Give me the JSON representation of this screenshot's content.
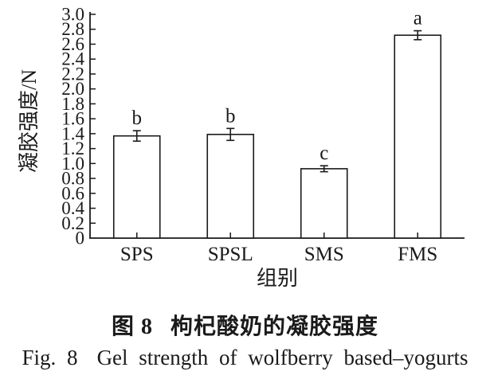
{
  "figure": {
    "captions": {
      "zh": {
        "label": "图 8",
        "text": "枸杞酸奶的凝胶强度"
      },
      "en": {
        "label": "Fig. 8",
        "text": "Gel strength of wolfberry based–yogurts"
      }
    }
  },
  "chart_data": {
    "type": "bar",
    "title": "",
    "xlabel": "组别",
    "ylabel": "凝胶强度/N",
    "categories": [
      "SPS",
      "SPSL",
      "SMS",
      "FMS"
    ],
    "values": [
      1.37,
      1.39,
      0.93,
      2.72
    ],
    "errors": [
      0.07,
      0.08,
      0.04,
      0.06
    ],
    "sig_letters": [
      "b",
      "b",
      "c",
      "a"
    ],
    "ylim": [
      0,
      3.0
    ],
    "ytick_step": 0.2,
    "ytick_labels": [
      "0",
      "0.2",
      "0.4",
      "0.6",
      "0.8",
      "1.0",
      "1.2",
      "1.4",
      "1.6",
      "1.8",
      "2.0",
      "2.2",
      "2.4",
      "2.6",
      "2.8",
      "3.0"
    ],
    "grid": false,
    "legend": "none",
    "bar_fill": "#ffffff",
    "line_color": "#1a1a1a"
  }
}
